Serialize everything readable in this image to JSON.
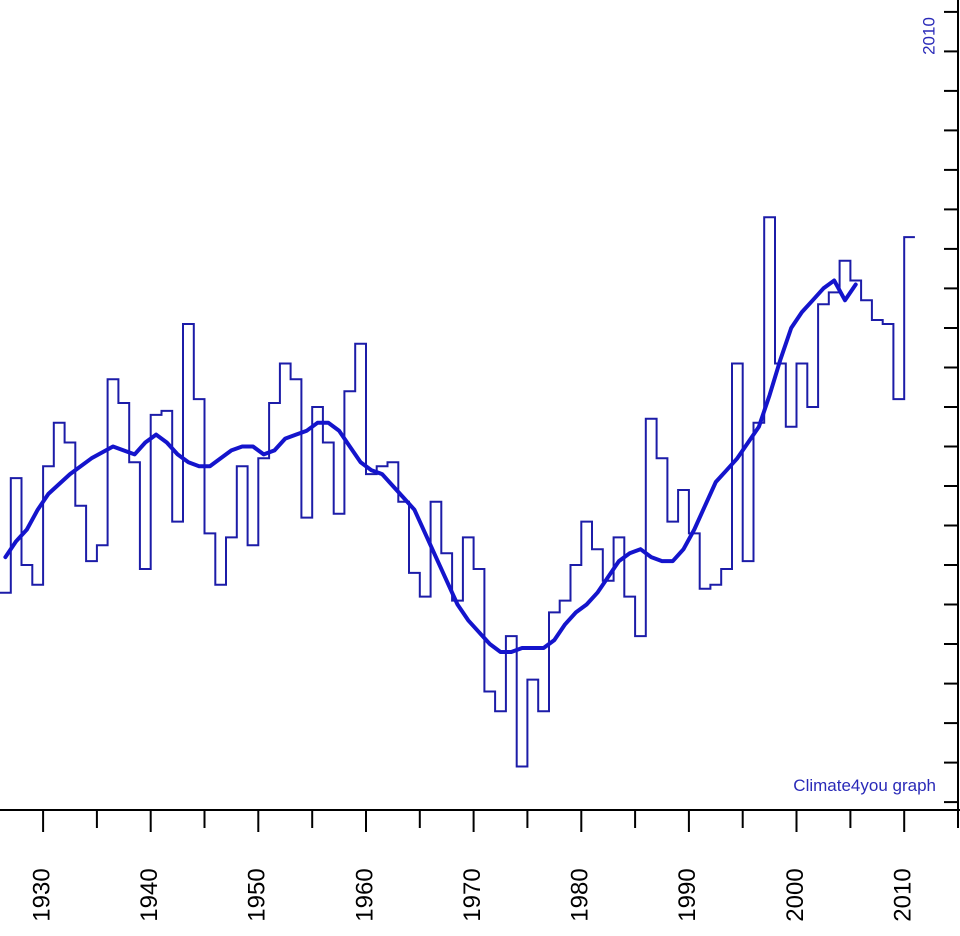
{
  "chart_data": {
    "type": "line",
    "title": "",
    "xlabel": "",
    "ylabel": "",
    "xlim": [
      1926,
      2015
    ],
    "ylim": [
      -0.92,
      1.13
    ],
    "grid": false,
    "legend": "none",
    "colors": {
      "annual": "#1c1ca8",
      "running_mean": "#1414cc",
      "axis": "#000000",
      "annotation": "#2a2ab8"
    },
    "x_tick_labels": [
      "1930",
      "1940",
      "1950",
      "1960",
      "1970",
      "1980",
      "1990",
      "2000",
      "2010"
    ],
    "annotations": [
      {
        "text": "Climate4you graph",
        "role": "credit"
      },
      {
        "text": "2010",
        "role": "year-marker"
      }
    ],
    "series": [
      {
        "style": "step",
        "x": [
          1926,
          1927,
          1928,
          1929,
          1930,
          1931,
          1932,
          1933,
          1934,
          1935,
          1936,
          1937,
          1938,
          1939,
          1940,
          1941,
          1942,
          1943,
          1944,
          1945,
          1946,
          1947,
          1948,
          1949,
          1950,
          1951,
          1952,
          1953,
          1954,
          1955,
          1956,
          1957,
          1958,
          1959,
          1960,
          1961,
          1962,
          1963,
          1964,
          1965,
          1966,
          1967,
          1968,
          1969,
          1970,
          1971,
          1972,
          1973,
          1974,
          1975,
          1976,
          1977,
          1978,
          1979,
          1980,
          1981,
          1982,
          1983,
          1984,
          1985,
          1986,
          1987,
          1988,
          1989,
          1990,
          1991,
          1992,
          1993,
          1994,
          1995,
          1996,
          1997,
          1998,
          1999,
          2000,
          2001,
          2002,
          2003,
          2004,
          2005,
          2006,
          2007,
          2008,
          2009,
          2010
        ],
        "y": [
          -0.37,
          -0.08,
          -0.3,
          -0.35,
          -0.05,
          0.06,
          0.01,
          -0.15,
          -0.29,
          -0.25,
          0.17,
          0.11,
          -0.04,
          -0.31,
          0.08,
          0.09,
          -0.19,
          0.31,
          0.12,
          -0.22,
          -0.35,
          -0.23,
          -0.05,
          -0.25,
          -0.03,
          0.11,
          0.21,
          0.17,
          -0.18,
          0.1,
          0.01,
          -0.17,
          0.14,
          0.26,
          -0.07,
          -0.05,
          -0.04,
          -0.14,
          -0.32,
          -0.38,
          -0.14,
          -0.27,
          -0.39,
          -0.23,
          -0.31,
          -0.62,
          -0.67,
          -0.48,
          -0.81,
          -0.59,
          -0.67,
          -0.42,
          -0.39,
          -0.3,
          -0.19,
          -0.26,
          -0.34,
          -0.23,
          -0.38,
          -0.48,
          0.07,
          -0.03,
          -0.19,
          -0.11,
          -0.22,
          -0.36,
          -0.35,
          -0.31,
          0.21,
          -0.29,
          0.06,
          0.58,
          0.21,
          0.05,
          0.21,
          0.1,
          0.36,
          0.39,
          0.47,
          0.42,
          0.37,
          0.32,
          0.31,
          0.12,
          0.53
        ]
      },
      {
        "style": "smooth",
        "x": [
          1926,
          1927,
          1928,
          1929,
          1930,
          1932,
          1934,
          1936,
          1938,
          1939,
          1940,
          1941,
          1942,
          1943,
          1944,
          1945,
          1946,
          1947,
          1948,
          1949,
          1950,
          1951,
          1952,
          1953,
          1954,
          1955,
          1956,
          1957,
          1958,
          1959,
          1960,
          1961,
          1962,
          1963,
          1964,
          1965,
          1966,
          1967,
          1968,
          1969,
          1970,
          1971,
          1972,
          1973,
          1974,
          1975,
          1976,
          1977,
          1978,
          1979,
          1980,
          1981,
          1982,
          1983,
          1984,
          1985,
          1986,
          1987,
          1988,
          1989,
          1990,
          1991,
          1992,
          1993,
          1994,
          1995,
          1996,
          1997,
          1998,
          1999,
          2000,
          2001,
          2002,
          2003,
          2004,
          2005
        ],
        "y": [
          -0.28,
          -0.24,
          -0.21,
          -0.16,
          -0.12,
          -0.07,
          -0.03,
          0.0,
          -0.02,
          0.01,
          0.03,
          0.01,
          -0.02,
          -0.04,
          -0.05,
          -0.05,
          -0.03,
          -0.01,
          0.0,
          0.0,
          -0.02,
          -0.01,
          0.02,
          0.03,
          0.04,
          0.06,
          0.06,
          0.04,
          0.0,
          -0.04,
          -0.06,
          -0.07,
          -0.1,
          -0.13,
          -0.16,
          -0.22,
          -0.28,
          -0.34,
          -0.4,
          -0.44,
          -0.47,
          -0.5,
          -0.52,
          -0.52,
          -0.51,
          -0.51,
          -0.51,
          -0.49,
          -0.45,
          -0.42,
          -0.4,
          -0.37,
          -0.33,
          -0.29,
          -0.27,
          -0.26,
          -0.28,
          -0.29,
          -0.29,
          -0.26,
          -0.21,
          -0.15,
          -0.09,
          -0.06,
          -0.03,
          0.01,
          0.05,
          0.13,
          0.22,
          0.3,
          0.34,
          0.37,
          0.4,
          0.42,
          0.37,
          0.41
        ]
      }
    ]
  }
}
